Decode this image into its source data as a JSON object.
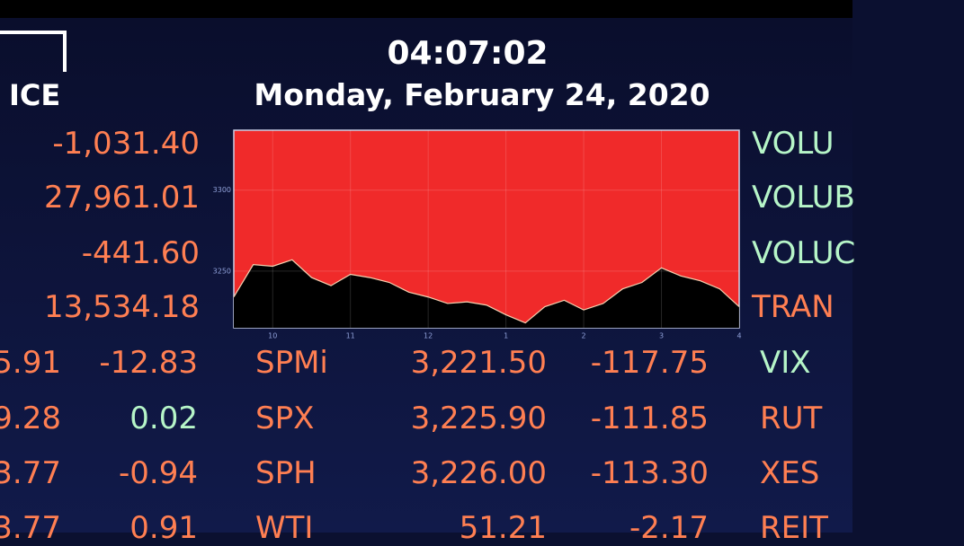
{
  "header": {
    "logo": "ICE",
    "time": "04:07:02",
    "date": "Monday, February 24, 2020"
  },
  "upper_rows": [
    [
      "-1,031.40",
      "VOLU"
    ],
    [
      "27,961.01",
      "VOLUB"
    ],
    [
      "-441.60",
      "VOLUC"
    ],
    [
      "13,534.18",
      "TRAN"
    ]
  ],
  "rows": [
    [
      "5.91",
      "-12.83",
      "SPMi",
      "3,221.50",
      "-117.75",
      "VIX"
    ],
    [
      "9.28",
      "0.02",
      "SPX",
      "3,225.90",
      "-111.85",
      "RUT"
    ],
    [
      "3.77",
      "-0.94",
      "SPH",
      "3,226.00",
      "-113.30",
      "XES"
    ],
    [
      "3.77",
      "0.91",
      "WTI",
      "51.21",
      "-2.17",
      "REIT"
    ]
  ],
  "chart_data": {
    "type": "area",
    "x": [
      9.5,
      9.75,
      10,
      10.25,
      10.5,
      10.75,
      11,
      11.25,
      11.5,
      11.75,
      12,
      12.25,
      12.5,
      12.75,
      13,
      13.25,
      13.5,
      13.75,
      14,
      14.25,
      14.5,
      14.75,
      15,
      15.25,
      15.5,
      15.75,
      16
    ],
    "values": [
      3234,
      3254,
      3253,
      3257,
      3246,
      3241,
      3248,
      3246,
      3243,
      3237,
      3234,
      3230,
      3231,
      3229,
      3223,
      3218,
      3228,
      3232,
      3226,
      3230,
      3239,
      3243,
      3252,
      3247,
      3244,
      3239,
      3228
    ],
    "xlim": [
      9.5,
      16
    ],
    "xticks": [
      {
        "value": 10,
        "label": "10"
      },
      {
        "value": 11,
        "label": "11"
      },
      {
        "value": 12,
        "label": "12"
      },
      {
        "value": 13,
        "label": "1"
      },
      {
        "value": 14,
        "label": "2"
      },
      {
        "value": 15,
        "label": "3"
      },
      {
        "value": 16,
        "label": "4"
      }
    ],
    "ylim": [
      3215,
      3337
    ],
    "yticks": [
      3250,
      3300
    ],
    "grid": true,
    "color": "#000000",
    "background": "#f02a2a"
  }
}
